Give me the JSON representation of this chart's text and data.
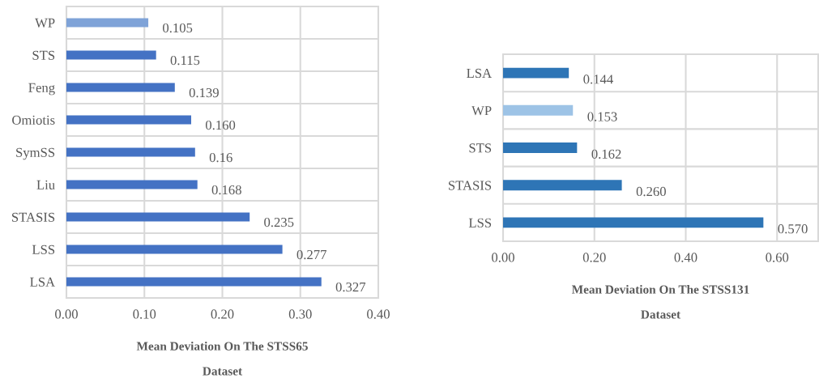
{
  "chart_data": [
    {
      "type": "bar",
      "orientation": "horizontal",
      "xlabel": "Mean Deviation On The STSS65\nDataset",
      "categories": [
        "WP",
        "STS",
        "Feng",
        "Omiotis",
        "SymSS",
        "Liu",
        "STASIS",
        "LSS",
        "LSA"
      ],
      "values": [
        0.105,
        0.115,
        0.139,
        0.16,
        0.165,
        0.168,
        0.235,
        0.277,
        0.327
      ],
      "value_labels": [
        "0.105",
        "0.115",
        "0.139",
        "0.160",
        "0.16",
        "0.168",
        "0.235",
        "0.277",
        "0.327"
      ],
      "colors": [
        "#7fa3d8",
        "#4472c4",
        "#4472c4",
        "#4472c4",
        "#4472c4",
        "#4472c4",
        "#4472c4",
        "#4472c4",
        "#4472c4"
      ],
      "xlim": [
        0,
        0.4
      ],
      "xticks": [
        {
          "value": 0,
          "label": "0.00"
        },
        {
          "value": 0.1,
          "label": "0.10"
        },
        {
          "value": 0.2,
          "label": "0.20"
        },
        {
          "value": 0.3,
          "label": "0.30"
        },
        {
          "value": 0.4,
          "label": "0.40"
        }
      ],
      "grid": true
    },
    {
      "type": "bar",
      "orientation": "horizontal",
      "xlabel": "Mean Deviation On The STSS131\nDataset",
      "categories": [
        "LSA",
        "WP",
        "STS",
        "STASIS",
        "LSS"
      ],
      "values": [
        0.144,
        0.153,
        0.162,
        0.26,
        0.57
      ],
      "value_labels": [
        "0.144",
        "0.153",
        "0.162",
        "0.260",
        "0.570"
      ],
      "colors": [
        "#2e75b6",
        "#9dc3e6",
        "#2e75b6",
        "#2e75b6",
        "#2e75b6"
      ],
      "xlim": [
        0,
        0.69
      ],
      "xticks": [
        {
          "value": 0,
          "label": "0.00"
        },
        {
          "value": 0.2,
          "label": "0.20"
        },
        {
          "value": 0.4,
          "label": "0.40"
        },
        {
          "value": 0.6,
          "label": "0.60"
        }
      ],
      "grid": true
    }
  ]
}
